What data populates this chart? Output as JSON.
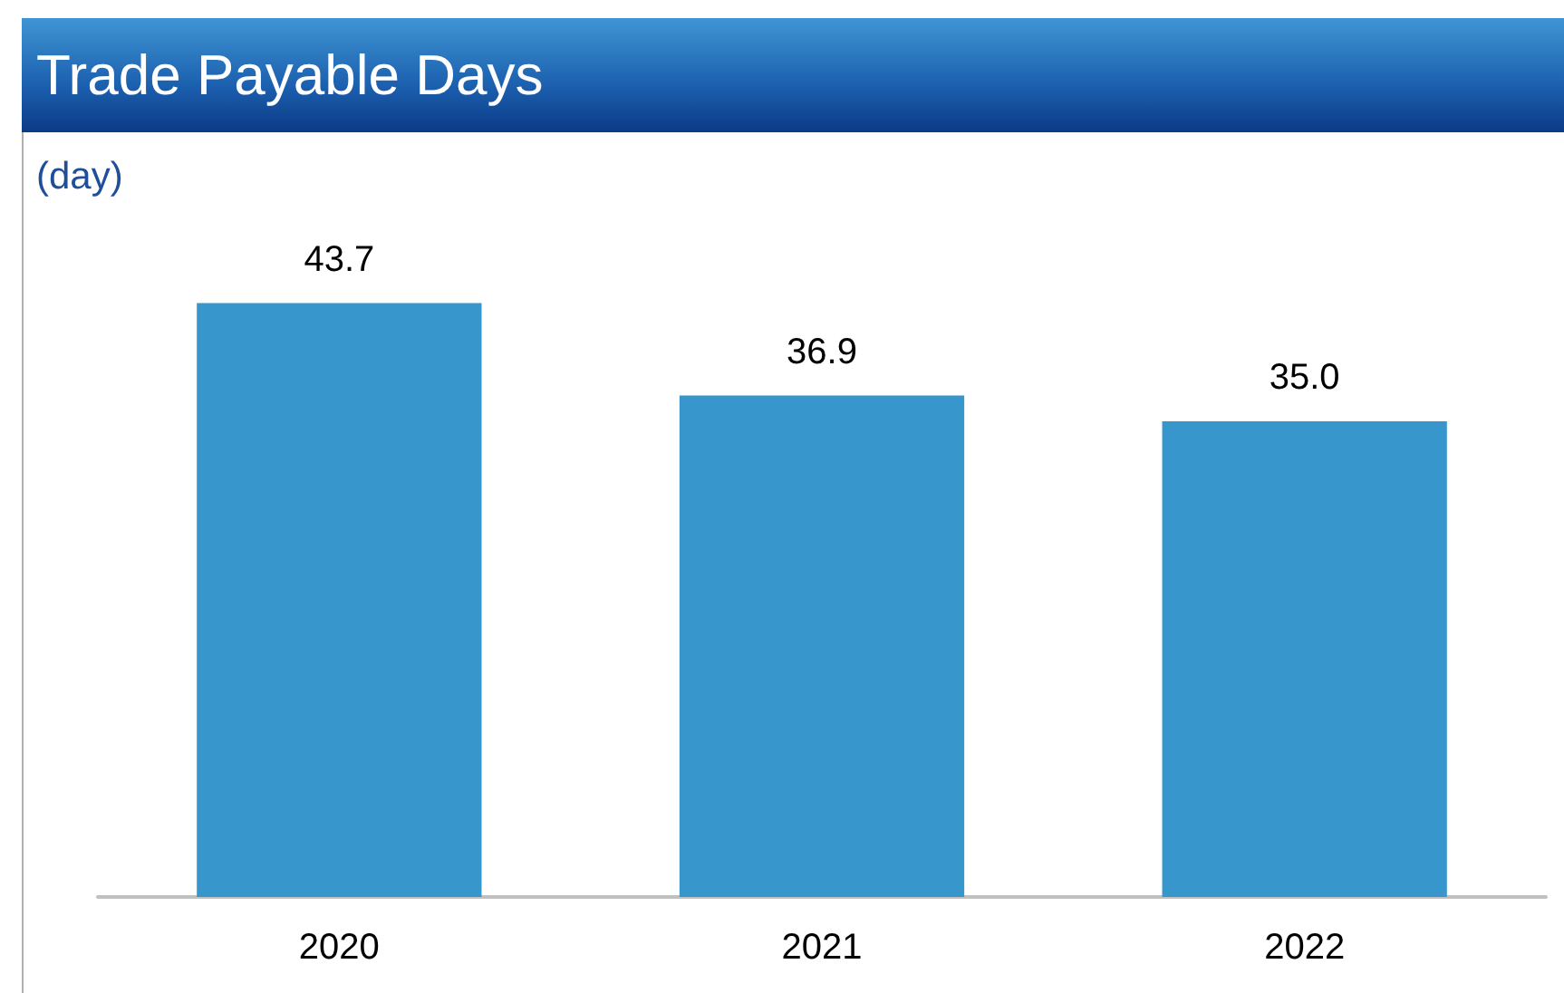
{
  "chart_data": {
    "type": "bar",
    "title": "Trade Payable Days",
    "ylabel": "(day)",
    "categories": [
      "2020",
      "2021",
      "2022"
    ],
    "values": [
      43.7,
      36.9,
      35.0
    ],
    "value_labels": [
      "43.7",
      "36.9",
      "35.0"
    ],
    "color": "#3796cc",
    "tick_labels": "x",
    "grid": false
  }
}
